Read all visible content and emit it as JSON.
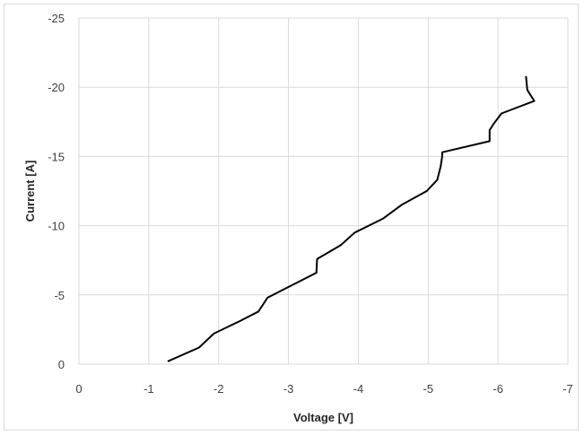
{
  "chart_data": {
    "type": "line",
    "title": "",
    "xlabel": "Voltage [V]",
    "ylabel": "Current [A]",
    "xlim": [
      0,
      -7
    ],
    "ylim": [
      0,
      -25
    ],
    "x_ticks": [
      0,
      -1,
      -2,
      -3,
      -4,
      -5,
      -6,
      -7
    ],
    "y_ticks": [
      0,
      -5,
      -10,
      -15,
      -20,
      -25
    ],
    "x_tick_labels": [
      "0",
      "-1",
      "-2",
      "-3",
      "-4",
      "-5",
      "-6",
      "-7"
    ],
    "y_tick_labels": [
      "0",
      "-5",
      "-10",
      "-15",
      "-20",
      "-25"
    ],
    "grid": true,
    "legend": false,
    "series": [
      {
        "color": "#000000",
        "x": [
          -1.27,
          -1.72,
          -1.93,
          -2.3,
          -2.57,
          -2.7,
          -3.4,
          -3.41,
          -3.75,
          -3.95,
          -4.35,
          -4.62,
          -4.98,
          -5.13,
          -5.18,
          -5.2,
          -5.2,
          -5.88,
          -5.88,
          -5.93,
          -6.05,
          -6.52,
          -6.42,
          -6.4
        ],
        "y": [
          -0.2,
          -1.2,
          -2.2,
          -3.1,
          -3.8,
          -4.8,
          -6.6,
          -7.6,
          -8.6,
          -9.5,
          -10.5,
          -11.5,
          -12.5,
          -13.3,
          -14.3,
          -15.0,
          -15.3,
          -16.1,
          -16.9,
          -17.3,
          -18.1,
          -19.0,
          -19.8,
          -20.8
        ]
      }
    ]
  }
}
